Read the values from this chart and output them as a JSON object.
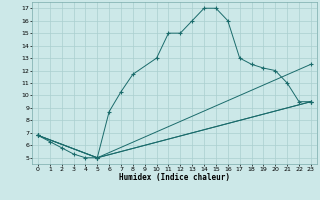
{
  "xlabel": "Humidex (Indice chaleur)",
  "background_color": "#cce8e8",
  "grid_color": "#aacfcf",
  "line_color": "#1a6b6b",
  "xlim": [
    -0.5,
    23.5
  ],
  "ylim": [
    4.5,
    17.5
  ],
  "xticks": [
    0,
    1,
    2,
    3,
    4,
    5,
    6,
    7,
    8,
    9,
    10,
    11,
    12,
    13,
    14,
    15,
    16,
    17,
    18,
    19,
    20,
    21,
    22,
    23
  ],
  "yticks": [
    5,
    6,
    7,
    8,
    9,
    10,
    11,
    12,
    13,
    14,
    15,
    16,
    17
  ],
  "line1_x": [
    0,
    1,
    2,
    3,
    4,
    5,
    6,
    7,
    8,
    10,
    11,
    12,
    13,
    14,
    15,
    16,
    17,
    18,
    19,
    20,
    21,
    22,
    23
  ],
  "line1_y": [
    6.8,
    6.3,
    5.8,
    5.3,
    5.0,
    5.0,
    8.7,
    10.3,
    11.7,
    13.0,
    15.0,
    15.0,
    16.0,
    17.0,
    17.0,
    16.0,
    13.0,
    12.5,
    12.2,
    12.0,
    11.0,
    9.5,
    9.5
  ],
  "line2_x": [
    0,
    5,
    23
  ],
  "line2_y": [
    6.8,
    5.0,
    9.5
  ],
  "line3_x": [
    0,
    5,
    23
  ],
  "line3_y": [
    6.8,
    5.0,
    12.5
  ],
  "line4_x": [
    0,
    5,
    23
  ],
  "line4_y": [
    6.8,
    5.0,
    9.5
  ]
}
